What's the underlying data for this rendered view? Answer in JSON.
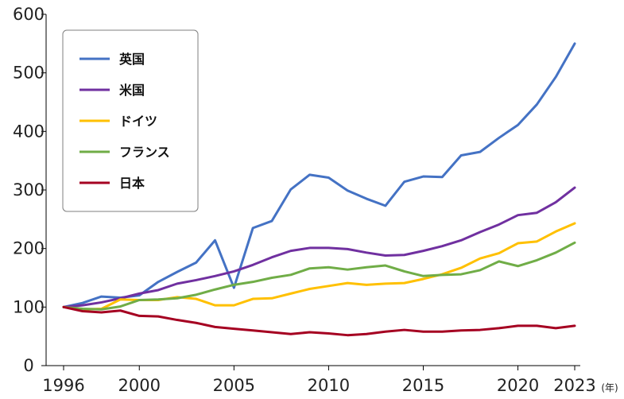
{
  "chart_data": {
    "type": "line",
    "x_unit": "(年)",
    "xlim": [
      1996,
      2023
    ],
    "ylim": [
      0,
      600
    ],
    "y_ticks": [
      0,
      100,
      200,
      300,
      400,
      500,
      600
    ],
    "x_ticks": [
      1996,
      2000,
      2005,
      2010,
      2015,
      2020,
      2023
    ],
    "grid": false,
    "legend_position": "top-left",
    "x": [
      1996,
      1997,
      1998,
      1999,
      2000,
      2001,
      2002,
      2003,
      2004,
      2005,
      2006,
      2007,
      2008,
      2009,
      2010,
      2011,
      2012,
      2013,
      2014,
      2015,
      2016,
      2017,
      2018,
      2019,
      2020,
      2021,
      2022,
      2023
    ],
    "series": [
      {
        "name": "英国",
        "color": "#4472c4",
        "values": [
          100,
          107,
          118,
          116,
          120,
          143,
          160,
          176,
          214,
          133,
          235,
          247,
          301,
          326,
          321,
          299,
          285,
          273,
          314,
          323,
          322,
          359,
          365,
          389,
          411,
          446,
          493,
          550
        ]
      },
      {
        "name": "米国",
        "color": "#7030a0",
        "values": [
          100,
          103,
          108,
          115,
          123,
          129,
          140,
          146,
          153,
          161,
          172,
          185,
          196,
          201,
          201,
          199,
          193,
          188,
          189,
          196,
          204,
          214,
          228,
          241,
          257,
          261,
          279,
          304
        ]
      },
      {
        "name": "ドイツ",
        "color": "#ffc000",
        "values": [
          100,
          96,
          97,
          113,
          112,
          112,
          117,
          114,
          103,
          103,
          114,
          115,
          123,
          131,
          136,
          141,
          138,
          140,
          141,
          148,
          156,
          167,
          183,
          192,
          209,
          212,
          229,
          243
        ]
      },
      {
        "name": "フランス",
        "color": "#70ad47",
        "values": [
          100,
          97,
          96,
          101,
          112,
          113,
          115,
          121,
          130,
          138,
          143,
          150,
          155,
          166,
          168,
          164,
          168,
          171,
          161,
          153,
          155,
          156,
          163,
          178,
          170,
          180,
          193,
          210
        ]
      },
      {
        "name": "日本",
        "color": "#a50021",
        "values": [
          100,
          93,
          91,
          94,
          85,
          84,
          78,
          73,
          66,
          63,
          60,
          57,
          54,
          57,
          55,
          52,
          54,
          58,
          61,
          58,
          58,
          60,
          61,
          64,
          68,
          68,
          64,
          68
        ]
      }
    ]
  }
}
